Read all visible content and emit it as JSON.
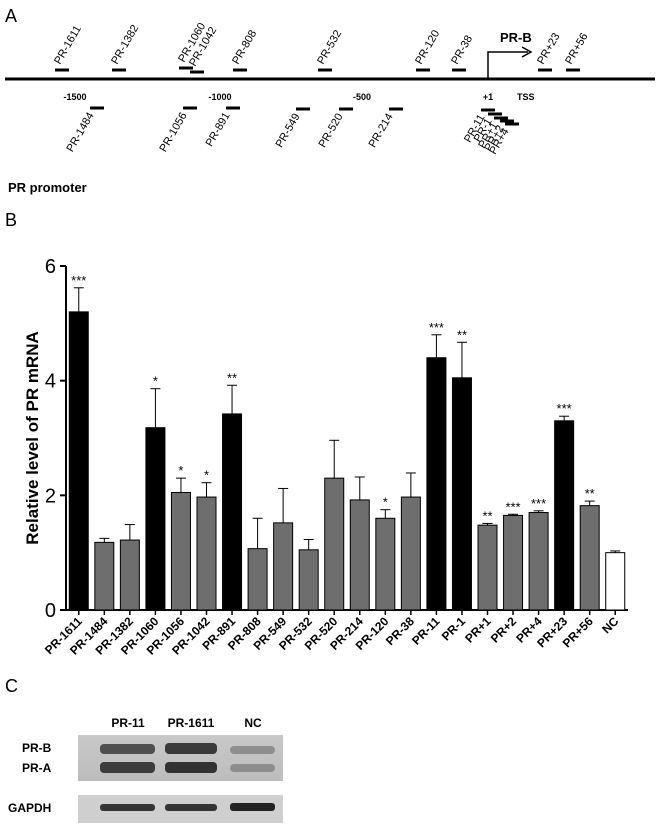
{
  "panel_a": {
    "label": "A",
    "above": [
      "PR-1611",
      "PR-1382",
      "PR-1060",
      "PR-1042",
      "PR-808",
      "PR-532",
      "PR-120",
      "PR-38",
      "PR+23",
      "PR+56"
    ],
    "below": [
      "PR-1484",
      "PR-1056",
      "PR-891",
      "PR-549",
      "PR-520",
      "PR-214",
      "PR-11",
      "PR-1",
      "PR+1",
      "PR+2",
      "PR+4"
    ],
    "axis_labels": [
      "-1500",
      "-1000",
      "-500",
      "+1"
    ],
    "tss": "TSS",
    "pr_b": "PR-B",
    "promoter_title": "PR promoter"
  },
  "chart_data": {
    "type": "bar",
    "panel_label": "B",
    "y_label": "Relative level of PR mRNA",
    "categories": [
      "PR-1611",
      "PR-1484",
      "PR-1382",
      "PR-1060",
      "PR-1056",
      "PR-1042",
      "PR-891",
      "PR-808",
      "PR-549",
      "PR-532",
      "PR-520",
      "PR-214",
      "PR-120",
      "PR-38",
      "PR-11",
      "PR-1",
      "PR+1",
      "PR+2",
      "PR+4",
      "PR+23",
      "PR+56",
      "NC"
    ],
    "values": [
      5.2,
      1.18,
      1.22,
      3.18,
      2.05,
      1.97,
      3.42,
      1.07,
      1.52,
      1.05,
      2.3,
      1.92,
      1.6,
      1.97,
      4.4,
      4.05,
      1.48,
      1.65,
      1.7,
      3.3,
      1.82,
      1.0
    ],
    "errors": [
      0.42,
      0.07,
      0.27,
      0.68,
      0.25,
      0.25,
      0.5,
      0.53,
      0.6,
      0.18,
      0.66,
      0.4,
      0.15,
      0.42,
      0.4,
      0.62,
      0.03,
      0.02,
      0.03,
      0.08,
      0.08,
      0.03
    ],
    "annotations": [
      "***",
      null,
      null,
      "*",
      "*",
      "*",
      "**",
      null,
      null,
      null,
      null,
      null,
      "*",
      null,
      "***",
      "**",
      "**",
      "***",
      "***",
      "***",
      "**",
      null
    ],
    "colors": [
      "#000000",
      "#6e6e6e",
      "#6e6e6e",
      "#000000",
      "#6e6e6e",
      "#6e6e6e",
      "#000000",
      "#6e6e6e",
      "#6e6e6e",
      "#6e6e6e",
      "#6e6e6e",
      "#6e6e6e",
      "#6e6e6e",
      "#6e6e6e",
      "#000000",
      "#000000",
      "#6e6e6e",
      "#6e6e6e",
      "#6e6e6e",
      "#000000",
      "#6e6e6e",
      "#ffffff"
    ],
    "ylim": [
      0,
      6
    ],
    "yticks": [
      0,
      2,
      4,
      6
    ]
  },
  "panel_c": {
    "label": "C",
    "lanes": [
      "PR-11",
      "PR-1611",
      "NC"
    ],
    "bands": [
      "PR-B",
      "PR-A"
    ],
    "loading": "GAPDH"
  }
}
